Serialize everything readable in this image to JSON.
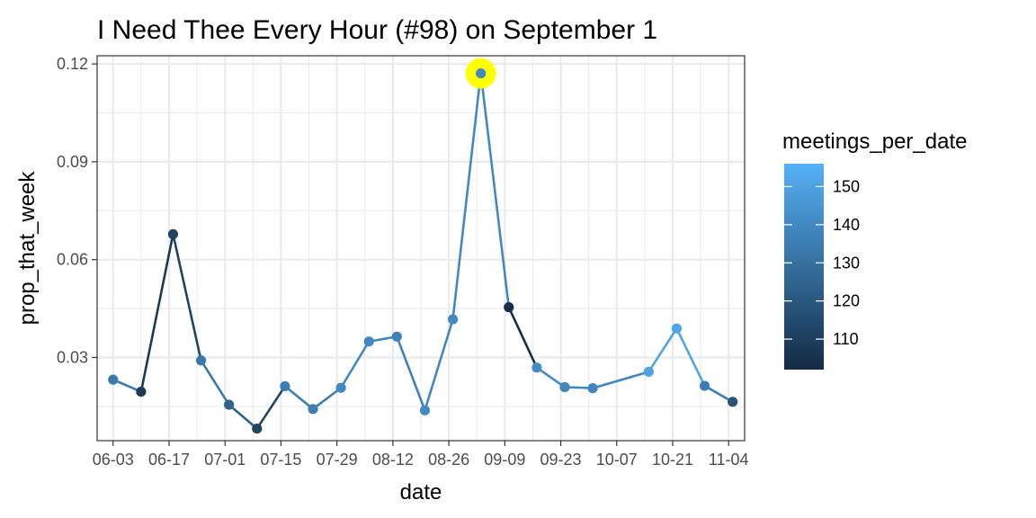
{
  "chart_data": {
    "type": "line",
    "title": "I Need Thee Every Hour (#98) on September 1",
    "xlabel": "date",
    "ylabel": "prop_that_week",
    "x_tick_labels": [
      "06-03",
      "06-17",
      "07-01",
      "07-15",
      "07-29",
      "08-12",
      "08-26",
      "09-09",
      "09-23",
      "10-07",
      "10-21",
      "11-04"
    ],
    "y_ticks": [
      0.03,
      0.06,
      0.09,
      0.12
    ],
    "y_tick_labels": [
      "0.03",
      "0.06",
      "0.09",
      "0.12"
    ],
    "xlim": [
      "2017-05-30",
      "2017-11-08"
    ],
    "ylim": [
      0.0045,
      0.1225
    ],
    "grid": true,
    "legend": {
      "title": "meetings_per_date",
      "placement": "right",
      "ticks": [
        110,
        120,
        130,
        140,
        150
      ],
      "tick_labels": [
        "110",
        "120",
        "130",
        "140",
        "150"
      ],
      "range": [
        102,
        156
      ],
      "color_low": "#132B43",
      "color_high": "#56B1F7"
    },
    "highlight": {
      "date": "2017-09-03",
      "color": "#FFFF00"
    },
    "points": [
      {
        "date": "2017-06-03",
        "y": 0.0232,
        "meetings": 134
      },
      {
        "date": "2017-06-10",
        "y": 0.0195,
        "meetings": 108
      },
      {
        "date": "2017-06-18",
        "y": 0.0678,
        "meetings": 112
      },
      {
        "date": "2017-06-25",
        "y": 0.0291,
        "meetings": 133
      },
      {
        "date": "2017-07-02",
        "y": 0.0155,
        "meetings": 124
      },
      {
        "date": "2017-07-09",
        "y": 0.0082,
        "meetings": 112
      },
      {
        "date": "2017-07-16",
        "y": 0.0212,
        "meetings": 136
      },
      {
        "date": "2017-07-23",
        "y": 0.0142,
        "meetings": 136
      },
      {
        "date": "2017-07-30",
        "y": 0.0207,
        "meetings": 140
      },
      {
        "date": "2017-08-06",
        "y": 0.0349,
        "meetings": 140
      },
      {
        "date": "2017-08-13",
        "y": 0.0364,
        "meetings": 137
      },
      {
        "date": "2017-08-20",
        "y": 0.0138,
        "meetings": 140
      },
      {
        "date": "2017-08-27",
        "y": 0.0417,
        "meetings": 140
      },
      {
        "date": "2017-09-03",
        "y": 0.1171,
        "meetings": 140
      },
      {
        "date": "2017-09-10",
        "y": 0.0454,
        "meetings": 104
      },
      {
        "date": "2017-09-17",
        "y": 0.0269,
        "meetings": 141
      },
      {
        "date": "2017-09-24",
        "y": 0.0209,
        "meetings": 139
      },
      {
        "date": "2017-10-01",
        "y": 0.0206,
        "meetings": 139
      },
      {
        "date": "2017-10-15",
        "y": 0.0256,
        "meetings": 150
      },
      {
        "date": "2017-10-22",
        "y": 0.0389,
        "meetings": 151
      },
      {
        "date": "2017-10-29",
        "y": 0.0213,
        "meetings": 136
      },
      {
        "date": "2017-11-05",
        "y": 0.0164,
        "meetings": 118
      }
    ]
  }
}
